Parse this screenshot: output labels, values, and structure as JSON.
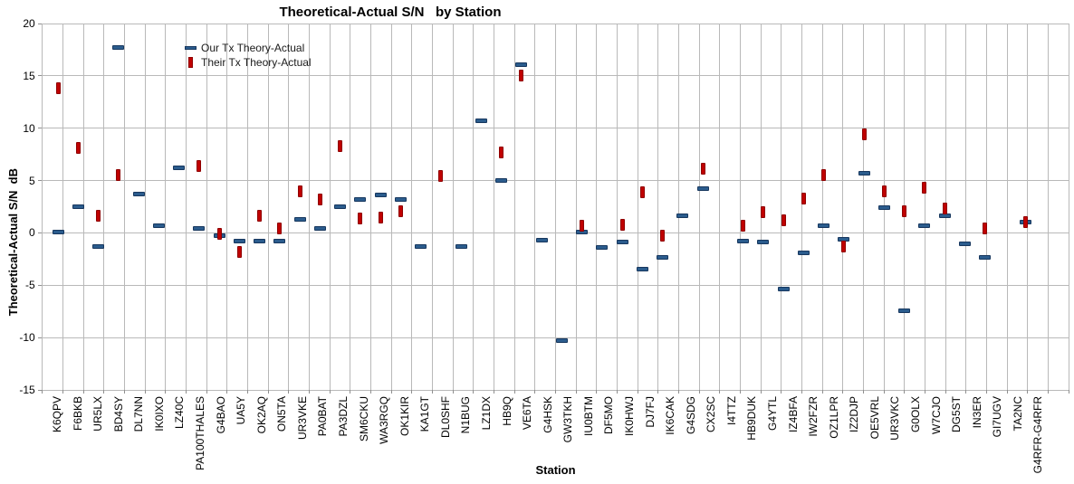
{
  "chart_data": {
    "type": "scatter",
    "title": "Theoretical-Actual S/N   by Station",
    "xlabel": "Station",
    "ylabel": "Theoretical-Actual S/N  dB",
    "ylim": [
      -15,
      20
    ],
    "ytick_step": 5,
    "yticks": [
      20,
      15,
      10,
      5,
      0,
      -5,
      -10,
      -15
    ],
    "grid": true,
    "legend_position": "inside-top-left",
    "background_color": "#ffffff",
    "gridline_color": "#b9b9b9",
    "categories": [
      "K6QPV",
      "F6BKB",
      "UR5LX",
      "BD4SY",
      "DL7NN",
      "IK0IXO",
      "LZ40C",
      "PA100THALES",
      "G4BAO",
      "UA5Y",
      "OK2AQ",
      "ON5TA",
      "UR3VKE",
      "PA0BAT",
      "PA3DZL",
      "SM6CKU",
      "WA3RGQ",
      "OK1KIR",
      "KA1GT",
      "DL0SHF",
      "N1BUG",
      "LZ1DX",
      "HB9Q",
      "VE6TA",
      "G4HSK",
      "GW3TKH",
      "IU0BTM",
      "DF5MO",
      "IK0HWJ",
      "DJ7FJ",
      "IK6CAK",
      "G4SDG",
      "CX2SC",
      "I4TTZ",
      "HB9DUK",
      "G4YTL",
      "IZ4BFA",
      "IW2FZR",
      "OZ1LPR",
      "IZ2DJP",
      "OE5VRL",
      "UR3VKC",
      "G0OLX",
      "W7CJO",
      "DG5ST",
      "IN3ER",
      "GI7UGV",
      "TA2NC",
      "G4RFR-G4RFR"
    ],
    "series": [
      {
        "name": "Our Tx Theory-Actual",
        "marker": "horizontal-dash",
        "color": "#2B5C8D",
        "border_color": "#17375E",
        "values": [
          0.1,
          2.5,
          -1.3,
          17.7,
          3.7,
          0.7,
          6.2,
          0.4,
          -0.3,
          -0.8,
          -0.8,
          -0.8,
          1.3,
          0.4,
          2.5,
          3.2,
          3.6,
          3.2,
          -1.3,
          null,
          -1.3,
          10.7,
          5.0,
          16.1,
          -0.7,
          -10.3,
          0.1,
          -1.4,
          -0.9,
          -3.5,
          -2.3,
          1.6,
          4.2,
          null,
          -0.8,
          -0.9,
          -5.4,
          -1.9,
          0.7,
          -0.6,
          5.7,
          2.4,
          -7.4,
          0.7,
          1.6,
          -1.0,
          -2.3,
          null,
          1.0
        ]
      },
      {
        "name": "Their Tx Theory-Actual",
        "marker": "vertical-bar",
        "color": "#C00000",
        "border_color": "#8F0000",
        "values": [
          13.8,
          8.1,
          1.6,
          5.5,
          null,
          null,
          null,
          6.4,
          -0.1,
          -1.8,
          1.6,
          0.4,
          4.0,
          3.2,
          8.3,
          1.4,
          1.5,
          2.1,
          null,
          5.4,
          null,
          null,
          7.7,
          15.0,
          null,
          null,
          0.7,
          null,
          0.8,
          3.9,
          -0.3,
          null,
          6.1,
          null,
          0.7,
          2.0,
          1.2,
          3.3,
          5.5,
          -1.3,
          9.4,
          4.0,
          2.1,
          4.3,
          2.3,
          null,
          0.4,
          null,
          1.0
        ]
      }
    ]
  }
}
